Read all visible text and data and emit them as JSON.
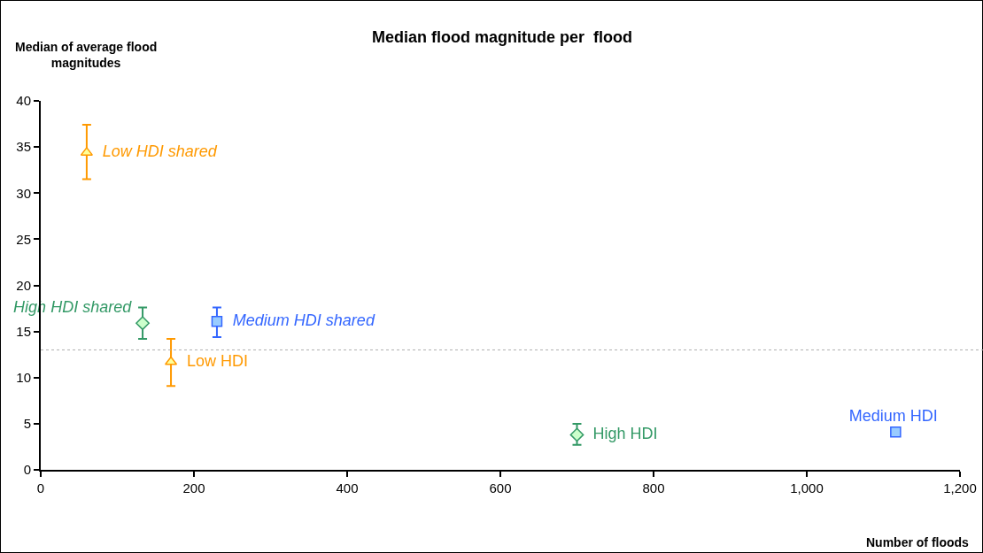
{
  "chart_data": {
    "type": "scatter",
    "title": "Median flood magnitude per  flood",
    "xlabel": "Number of floods",
    "ylabel": "Median of average flood magnitudes",
    "xlim": [
      0,
      1200
    ],
    "xticks": [
      0,
      200,
      400,
      600,
      800,
      {
        "value": 1000,
        "label": "1,000"
      },
      {
        "value": 1200,
        "label": "1,200"
      }
    ],
    "ylim": [
      0,
      40
    ],
    "yticks": [
      0,
      5,
      10,
      15,
      20,
      25,
      30,
      35,
      40
    ],
    "grid": false,
    "legend": false,
    "series": [
      {
        "name": "Low HDI shared",
        "color": "#ff9900",
        "marker": "triangle",
        "x": [
          60
        ],
        "values": [
          34.4
        ],
        "errors": [
          [
            31.5,
            37.4
          ]
        ]
      },
      {
        "name": "High HDI shared",
        "color": "#339966",
        "marker": "diamond",
        "x": [
          133
        ],
        "values": [
          15.9
        ],
        "errors": [
          [
            14.2,
            17.6
          ]
        ]
      },
      {
        "name": "Medium HDI shared",
        "color": "#3366ff",
        "marker": "square",
        "x": [
          230
        ],
        "values": [
          16.1
        ],
        "errors": [
          [
            14.4,
            17.6
          ]
        ]
      },
      {
        "name": "Low HDI",
        "color": "#ff9900",
        "marker": "triangle",
        "x": [
          170
        ],
        "values": [
          11.7
        ],
        "errors": [
          [
            9.1,
            14.2
          ]
        ]
      },
      {
        "name": "High HDI",
        "color": "#339966",
        "marker": "diamond",
        "x": [
          700
        ],
        "values": [
          3.8
        ],
        "errors": [
          [
            2.7,
            5.0
          ]
        ]
      },
      {
        "name": "Medium HDI",
        "color": "#3366ff",
        "marker": "square",
        "x": [
          1116
        ],
        "values": [
          4.1
        ]
      }
    ],
    "ref_lines": [
      {
        "axis": "y",
        "value": 13.0,
        "color": "#b0b0b0",
        "line_style": "dotted"
      }
    ]
  }
}
